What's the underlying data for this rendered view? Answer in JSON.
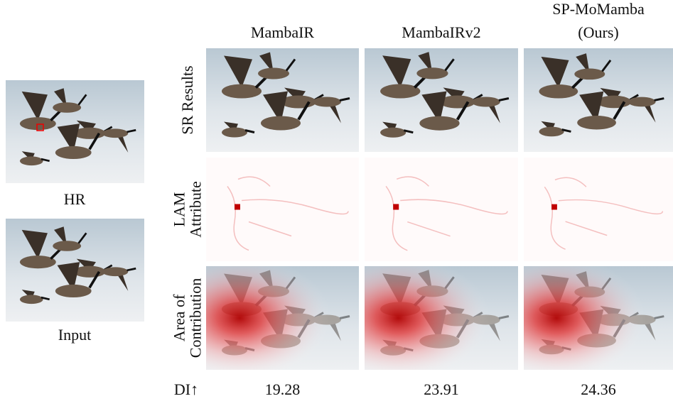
{
  "left_panel": {
    "hr_label": "HR",
    "input_label": "Input"
  },
  "columns": [
    {
      "label_lines": [
        "MambaIR"
      ]
    },
    {
      "label_lines": [
        "MambaIRv2"
      ]
    },
    {
      "label_lines": [
        "SP-MoMamba",
        "(Ours)"
      ]
    }
  ],
  "rows": [
    {
      "label_lines": [
        "SR Results"
      ]
    },
    {
      "label_lines": [
        "LAM",
        "Attribute"
      ]
    },
    {
      "label_lines": [
        "Area of",
        "Contribution"
      ]
    }
  ],
  "metric": {
    "label": "DI↑",
    "values": [
      "19.28",
      "23.91",
      "24.36"
    ]
  }
}
